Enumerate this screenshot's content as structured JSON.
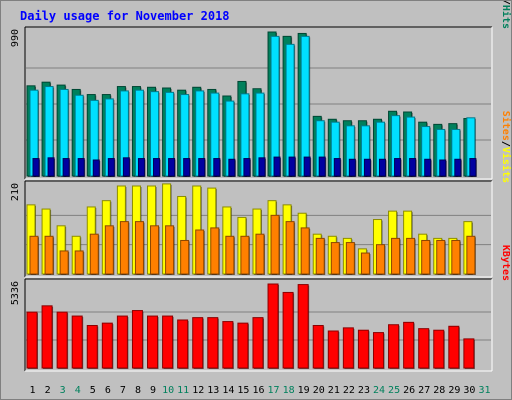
{
  "chart_data": {
    "type": "bar",
    "title": "Daily usage for November 2018",
    "categories": [
      "1",
      "2",
      "3",
      "4",
      "5",
      "6",
      "7",
      "8",
      "9",
      "10",
      "11",
      "12",
      "13",
      "14",
      "15",
      "16",
      "17",
      "18",
      "19",
      "20",
      "21",
      "22",
      "23",
      "24",
      "25",
      "26",
      "27",
      "28",
      "29",
      "30",
      "31"
    ],
    "weekend_days": [
      "3",
      "4",
      "10",
      "11",
      "17",
      "18",
      "24",
      "25",
      "31"
    ],
    "colors": {
      "hits": "#00805c",
      "files": "#00e0ff",
      "pages": "#0000a0",
      "visits": "#ffff00",
      "sites": "#ff8000",
      "kbytes": "#ff0000",
      "title": "#0000ff",
      "weekday_label": "#000000",
      "weekend_label": "#00805c"
    },
    "panels": [
      {
        "name": "hits-files-pages",
        "max_label": "990",
        "ymax": 990,
        "legend": [
          "Pages",
          "Files",
          "Hits"
        ],
        "separator": "/",
        "series": [
          {
            "name": "Hits",
            "values": [
              620,
              645,
              625,
              595,
              560,
              560,
              615,
              615,
              610,
              605,
              590,
              610,
              595,
              550,
              650,
              600,
              990,
              960,
              980,
              410,
              390,
              380,
              380,
              390,
              445,
              440,
              370,
              355,
              360,
              395,
              0
            ]
          },
          {
            "name": "Files",
            "values": [
              590,
              615,
              595,
              555,
              520,
              530,
              585,
              590,
              580,
              575,
              560,
              585,
              570,
              515,
              565,
              570,
              960,
              905,
              960,
              380,
              370,
              345,
              345,
              370,
              415,
              405,
              340,
              320,
              320,
              400,
              0
            ]
          },
          {
            "name": "Pages",
            "values": [
              120,
              125,
              120,
              120,
              110,
              120,
              125,
              120,
              120,
              120,
              120,
              120,
              120,
              115,
              120,
              125,
              130,
              130,
              130,
              130,
              120,
              115,
              115,
              115,
              120,
              120,
              115,
              110,
              115,
              120,
              0
            ]
          }
        ]
      },
      {
        "name": "visits-sites",
        "max_label": "210",
        "ymax": 210,
        "legend": [
          "Sites",
          "Visits"
        ],
        "separator": "/",
        "series": [
          {
            "name": "Visits",
            "values": [
              165,
              155,
              115,
              90,
              160,
              175,
              210,
              210,
              210,
              215,
              185,
              210,
              205,
              160,
              135,
              155,
              175,
              165,
              145,
              95,
              90,
              85,
              60,
              130,
              150,
              150,
              95,
              85,
              85,
              125,
              0
            ]
          },
          {
            "name": "Sites",
            "values": [
              90,
              90,
              55,
              55,
              95,
              115,
              125,
              125,
              115,
              115,
              80,
              105,
              110,
              90,
              90,
              95,
              140,
              125,
              110,
              85,
              75,
              75,
              50,
              70,
              85,
              85,
              80,
              80,
              80,
              90,
              0
            ]
          }
        ]
      },
      {
        "name": "kbytes",
        "max_label": "5336",
        "ymax": 5336,
        "legend": [
          "KBytes"
        ],
        "separator": "",
        "series": [
          {
            "name": "KBytes",
            "values": [
              3550,
              3950,
              3550,
              3300,
              2700,
              2850,
              3300,
              3650,
              3300,
              3300,
              3050,
              3200,
              3200,
              2950,
              2850,
              3200,
              5336,
              4800,
              5300,
              2700,
              2350,
              2550,
              2400,
              2250,
              2750,
              2900,
              2500,
              2400,
              2650,
              1850,
              0
            ]
          }
        ]
      }
    ]
  }
}
